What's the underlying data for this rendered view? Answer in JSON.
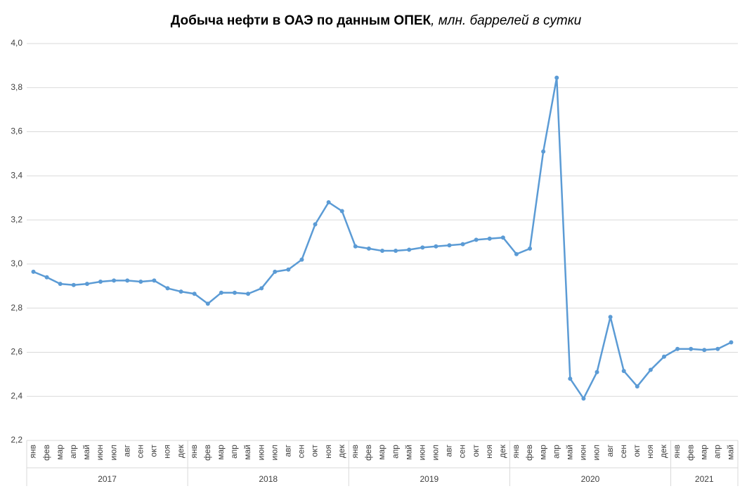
{
  "chart_data": {
    "type": "line",
    "title": "Добыча нефти в ОАЭ по данным ОПЕК",
    "subtitle": ", млн. баррелей в сутки",
    "groups": [
      {
        "name": "2017",
        "categories": [
          "янв",
          "фев",
          "мар",
          "апр",
          "май",
          "июн",
          "июл",
          "авг",
          "сен",
          "окт",
          "ноя",
          "дек"
        ]
      },
      {
        "name": "2018",
        "categories": [
          "янв",
          "фев",
          "мар",
          "апр",
          "май",
          "июн",
          "июл",
          "авг",
          "сен",
          "окт",
          "ноя",
          "дек"
        ]
      },
      {
        "name": "2019",
        "categories": [
          "янв",
          "фев",
          "мар",
          "апр",
          "май",
          "июн",
          "июл",
          "авг",
          "сен",
          "окт",
          "ноя",
          "дек"
        ]
      },
      {
        "name": "2020",
        "categories": [
          "янв",
          "фев",
          "мар",
          "апр",
          "май",
          "июн",
          "июл",
          "авг",
          "сен",
          "окт",
          "ноя",
          "дек"
        ]
      },
      {
        "name": "2021",
        "categories": [
          "янв",
          "фев",
          "мар",
          "апр",
          "май"
        ]
      }
    ],
    "series": [
      {
        "name": "Добыча",
        "color": "#5b9bd5",
        "values": [
          2.965,
          2.94,
          2.91,
          2.905,
          2.91,
          2.92,
          2.925,
          2.925,
          2.92,
          2.925,
          2.89,
          2.875,
          2.865,
          2.82,
          2.87,
          2.87,
          2.865,
          2.89,
          2.965,
          2.975,
          3.02,
          3.18,
          3.28,
          3.24,
          3.08,
          3.07,
          3.06,
          3.06,
          3.065,
          3.075,
          3.08,
          3.085,
          3.09,
          3.11,
          3.115,
          3.12,
          3.045,
          3.07,
          3.51,
          3.845,
          2.48,
          2.39,
          2.51,
          2.76,
          2.515,
          2.445,
          2.52,
          2.58,
          2.615,
          2.615,
          2.61,
          2.615,
          2.645
        ]
      }
    ],
    "ylim": [
      2.2,
      4.0
    ],
    "yticks": [
      {
        "value": 2.2,
        "label": "2,2"
      },
      {
        "value": 2.4,
        "label": "2,4"
      },
      {
        "value": 2.6,
        "label": "2,6"
      },
      {
        "value": 2.8,
        "label": "2,8"
      },
      {
        "value": 3.0,
        "label": "3,0"
      },
      {
        "value": 3.2,
        "label": "3,2"
      },
      {
        "value": 3.4,
        "label": "3,4"
      },
      {
        "value": 3.6,
        "label": "3,6"
      },
      {
        "value": 3.8,
        "label": "3,8"
      },
      {
        "value": 4.0,
        "label": "4,0"
      }
    ],
    "grid": true
  }
}
